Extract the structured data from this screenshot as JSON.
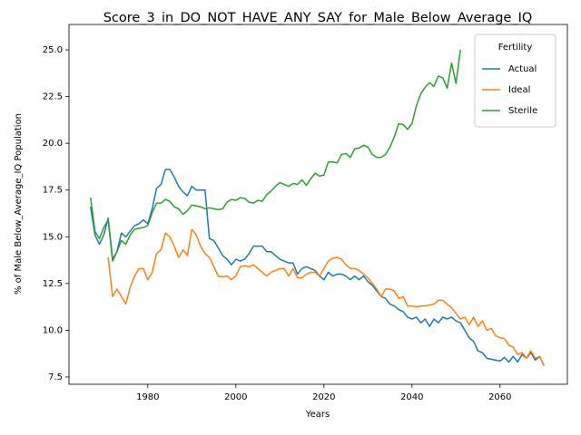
{
  "chart_data": {
    "type": "line",
    "title": "Score_3_in_DO_NOT_HAVE_ANY_SAY_for_Male_Below_Average_IQ",
    "xlabel": "Years",
    "ylabel": "% of Male Below_Average_IQ Population",
    "x": [
      1967,
      1968,
      1969,
      1970,
      1971,
      1972,
      1973,
      1974,
      1975,
      1976,
      1977,
      1978,
      1979,
      1980,
      1981,
      1982,
      1983,
      1984,
      1985,
      1986,
      1987,
      1988,
      1989,
      1990,
      1991,
      1992,
      1993,
      1994,
      1995,
      1996,
      1997,
      1998,
      1999,
      2000,
      2001,
      2002,
      2003,
      2004,
      2005,
      2006,
      2007,
      2008,
      2009,
      2010,
      2011,
      2012,
      2013,
      2014,
      2015,
      2016,
      2017,
      2018,
      2019,
      2020,
      2021,
      2022,
      2023,
      2024,
      2025,
      2026,
      2027,
      2028,
      2029,
      2030,
      2031,
      2032,
      2033,
      2034,
      2035,
      2036,
      2037,
      2038,
      2039,
      2040,
      2041,
      2042,
      2043,
      2044,
      2045,
      2046,
      2047,
      2048,
      2049,
      2050,
      2051,
      2052,
      2053,
      2054,
      2055,
      2056,
      2057,
      2058,
      2059,
      2060,
      2061,
      2062,
      2063,
      2064,
      2065,
      2066,
      2067,
      2068,
      2069,
      2070
    ],
    "series": [
      {
        "name": "Actual",
        "color": "#1f77b4",
        "values": [
          16.6,
          15.1,
          14.6,
          15.1,
          16.0,
          13.8,
          14.2,
          15.2,
          15.0,
          15.3,
          15.6,
          15.7,
          15.9,
          15.7,
          16.5,
          17.6,
          17.8,
          18.6,
          18.6,
          18.2,
          17.7,
          17.4,
          17.2,
          17.7,
          17.5,
          17.5,
          17.5,
          14.9,
          14.8,
          14.4,
          14.0,
          13.8,
          13.5,
          13.8,
          13.7,
          13.8,
          14.1,
          14.5,
          14.5,
          14.5,
          14.2,
          14.2,
          14.0,
          13.8,
          13.7,
          13.6,
          13.6,
          13.0,
          13.3,
          13.4,
          13.3,
          13.2,
          12.9,
          12.7,
          13.1,
          12.9,
          13.0,
          13.0,
          12.9,
          12.7,
          12.9,
          12.7,
          12.9,
          12.6,
          12.4,
          12.1,
          11.8,
          11.7,
          11.4,
          11.3,
          11.1,
          11.0,
          10.7,
          10.6,
          10.7,
          10.4,
          10.6,
          10.2,
          10.6,
          10.4,
          10.7,
          10.6,
          10.7,
          10.5,
          10.4,
          10.0,
          9.6,
          9.4,
          8.9,
          8.8,
          8.5,
          8.45,
          8.4,
          8.35,
          8.55,
          8.3,
          8.6,
          8.3,
          8.7,
          8.5,
          8.8,
          8.4,
          8.6,
          8.1
        ]
      },
      {
        "name": "Ideal",
        "color": "#ff7f0e",
        "values": [
          null,
          null,
          null,
          null,
          13.9,
          11.8,
          12.2,
          11.8,
          11.4,
          12.3,
          12.9,
          13.3,
          13.3,
          12.7,
          13.1,
          14.1,
          14.3,
          15.2,
          15.0,
          14.5,
          13.9,
          14.3,
          14.0,
          15.4,
          15.1,
          14.5,
          14.1,
          13.9,
          13.4,
          12.9,
          12.85,
          12.9,
          12.7,
          12.9,
          13.4,
          13.45,
          13.4,
          13.5,
          13.3,
          13.1,
          12.9,
          13.1,
          13.2,
          13.3,
          13.3,
          12.9,
          13.3,
          12.8,
          12.8,
          13.0,
          13.1,
          13.1,
          12.9,
          13.3,
          13.7,
          13.85,
          13.9,
          13.8,
          13.5,
          13.3,
          13.3,
          13.2,
          13.0,
          12.8,
          12.5,
          12.2,
          11.8,
          12.2,
          12.2,
          12.1,
          11.7,
          11.8,
          11.3,
          11.3,
          11.25,
          11.3,
          11.3,
          11.35,
          11.4,
          11.6,
          11.6,
          11.4,
          11.2,
          10.9,
          10.6,
          10.7,
          10.3,
          10.7,
          10.2,
          10.5,
          10.0,
          10.1,
          9.7,
          9.6,
          9.55,
          9.2,
          9.1,
          8.7,
          8.8,
          8.5,
          8.9,
          8.5,
          8.6,
          8.1
        ]
      },
      {
        "name": "Sterile",
        "color": "#2ca02c",
        "values": [
          17.1,
          15.3,
          14.9,
          15.5,
          15.9,
          13.7,
          14.2,
          14.8,
          14.6,
          15.1,
          15.4,
          15.45,
          15.5,
          15.6,
          16.3,
          16.8,
          16.8,
          17.0,
          16.9,
          16.6,
          16.5,
          16.2,
          16.4,
          16.7,
          16.65,
          16.6,
          16.5,
          16.55,
          16.5,
          16.45,
          16.5,
          16.85,
          17.0,
          16.95,
          17.1,
          17.05,
          16.85,
          16.8,
          16.95,
          16.9,
          17.25,
          17.45,
          17.7,
          17.9,
          17.8,
          17.7,
          17.85,
          17.8,
          18.05,
          17.75,
          18.1,
          18.4,
          18.25,
          18.3,
          19.0,
          19.0,
          18.95,
          19.4,
          19.45,
          19.25,
          19.7,
          19.75,
          19.9,
          19.8,
          19.4,
          19.25,
          19.25,
          19.4,
          19.8,
          20.35,
          21.05,
          21.0,
          20.75,
          21.05,
          22.0,
          22.65,
          23.0,
          23.25,
          23.05,
          23.6,
          23.5,
          22.95,
          24.3,
          23.2,
          25.0,
          null,
          null,
          null,
          null,
          null,
          null,
          null,
          null,
          null,
          null,
          null,
          null,
          null,
          null,
          null,
          null,
          null,
          null,
          null
        ]
      }
    ],
    "xlim": [
      1962.1,
      2075.3
    ],
    "ylim": [
      7.11,
      26.36
    ],
    "xticks": [
      1980,
      2000,
      2020,
      2040,
      2060
    ],
    "yticks": [
      7.5,
      {
        "value": 10.0,
        "label": "10.0"
      },
      12.5,
      {
        "value": 15.0,
        "label": "15.0"
      },
      17.5,
      {
        "value": 20.0,
        "label": "20.0"
      },
      22.5,
      {
        "value": 25.0,
        "label": "25.0"
      }
    ],
    "legend_title": "Fertility",
    "legend": "upper right"
  }
}
